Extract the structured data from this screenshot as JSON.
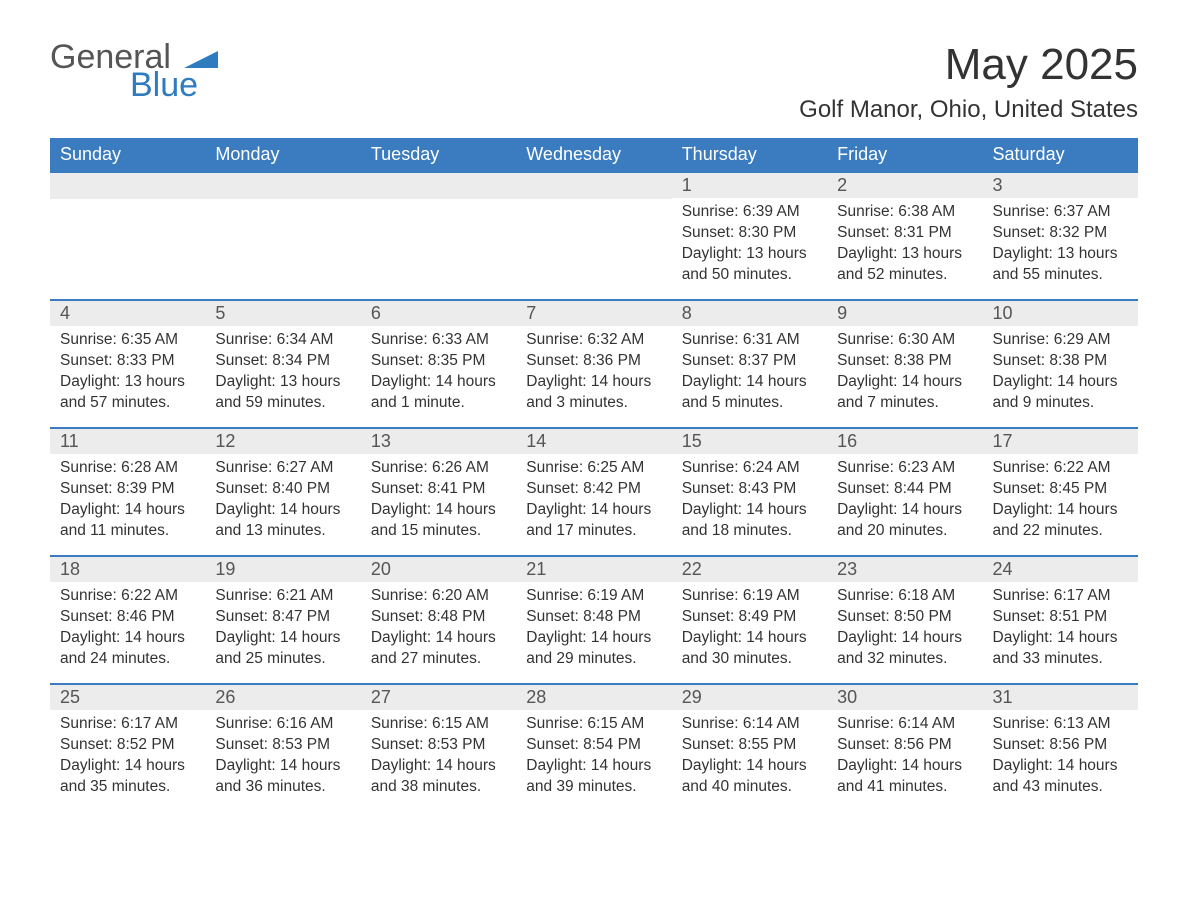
{
  "brand": {
    "word1": "General",
    "word2": "Blue",
    "shape_color": "#2f7bbf",
    "text_gray": "#555555",
    "text_blue": "#2f7bbf"
  },
  "title": "May 2025",
  "location": "Golf Manor, Ohio, United States",
  "colors": {
    "header_bg": "#3a7cbf",
    "header_text": "#ffffff",
    "daynum_bg": "#ececec",
    "daynum_text": "#555555",
    "body_text": "#333333",
    "row_border": "#3a7cbf",
    "page_bg": "#ffffff"
  },
  "fonts": {
    "title_size_pt": 33,
    "location_size_pt": 18,
    "header_size_pt": 14,
    "daynum_size_pt": 14,
    "body_size_pt": 12
  },
  "weekdays": [
    "Sunday",
    "Monday",
    "Tuesday",
    "Wednesday",
    "Thursday",
    "Friday",
    "Saturday"
  ],
  "weeks": [
    [
      {
        "day": "",
        "sunrise": "",
        "sunset": "",
        "daylight": ""
      },
      {
        "day": "",
        "sunrise": "",
        "sunset": "",
        "daylight": ""
      },
      {
        "day": "",
        "sunrise": "",
        "sunset": "",
        "daylight": ""
      },
      {
        "day": "",
        "sunrise": "",
        "sunset": "",
        "daylight": ""
      },
      {
        "day": "1",
        "sunrise": "Sunrise: 6:39 AM",
        "sunset": "Sunset: 8:30 PM",
        "daylight": "Daylight: 13 hours and 50 minutes."
      },
      {
        "day": "2",
        "sunrise": "Sunrise: 6:38 AM",
        "sunset": "Sunset: 8:31 PM",
        "daylight": "Daylight: 13 hours and 52 minutes."
      },
      {
        "day": "3",
        "sunrise": "Sunrise: 6:37 AM",
        "sunset": "Sunset: 8:32 PM",
        "daylight": "Daylight: 13 hours and 55 minutes."
      }
    ],
    [
      {
        "day": "4",
        "sunrise": "Sunrise: 6:35 AM",
        "sunset": "Sunset: 8:33 PM",
        "daylight": "Daylight: 13 hours and 57 minutes."
      },
      {
        "day": "5",
        "sunrise": "Sunrise: 6:34 AM",
        "sunset": "Sunset: 8:34 PM",
        "daylight": "Daylight: 13 hours and 59 minutes."
      },
      {
        "day": "6",
        "sunrise": "Sunrise: 6:33 AM",
        "sunset": "Sunset: 8:35 PM",
        "daylight": "Daylight: 14 hours and 1 minute."
      },
      {
        "day": "7",
        "sunrise": "Sunrise: 6:32 AM",
        "sunset": "Sunset: 8:36 PM",
        "daylight": "Daylight: 14 hours and 3 minutes."
      },
      {
        "day": "8",
        "sunrise": "Sunrise: 6:31 AM",
        "sunset": "Sunset: 8:37 PM",
        "daylight": "Daylight: 14 hours and 5 minutes."
      },
      {
        "day": "9",
        "sunrise": "Sunrise: 6:30 AM",
        "sunset": "Sunset: 8:38 PM",
        "daylight": "Daylight: 14 hours and 7 minutes."
      },
      {
        "day": "10",
        "sunrise": "Sunrise: 6:29 AM",
        "sunset": "Sunset: 8:38 PM",
        "daylight": "Daylight: 14 hours and 9 minutes."
      }
    ],
    [
      {
        "day": "11",
        "sunrise": "Sunrise: 6:28 AM",
        "sunset": "Sunset: 8:39 PM",
        "daylight": "Daylight: 14 hours and 11 minutes."
      },
      {
        "day": "12",
        "sunrise": "Sunrise: 6:27 AM",
        "sunset": "Sunset: 8:40 PM",
        "daylight": "Daylight: 14 hours and 13 minutes."
      },
      {
        "day": "13",
        "sunrise": "Sunrise: 6:26 AM",
        "sunset": "Sunset: 8:41 PM",
        "daylight": "Daylight: 14 hours and 15 minutes."
      },
      {
        "day": "14",
        "sunrise": "Sunrise: 6:25 AM",
        "sunset": "Sunset: 8:42 PM",
        "daylight": "Daylight: 14 hours and 17 minutes."
      },
      {
        "day": "15",
        "sunrise": "Sunrise: 6:24 AM",
        "sunset": "Sunset: 8:43 PM",
        "daylight": "Daylight: 14 hours and 18 minutes."
      },
      {
        "day": "16",
        "sunrise": "Sunrise: 6:23 AM",
        "sunset": "Sunset: 8:44 PM",
        "daylight": "Daylight: 14 hours and 20 minutes."
      },
      {
        "day": "17",
        "sunrise": "Sunrise: 6:22 AM",
        "sunset": "Sunset: 8:45 PM",
        "daylight": "Daylight: 14 hours and 22 minutes."
      }
    ],
    [
      {
        "day": "18",
        "sunrise": "Sunrise: 6:22 AM",
        "sunset": "Sunset: 8:46 PM",
        "daylight": "Daylight: 14 hours and 24 minutes."
      },
      {
        "day": "19",
        "sunrise": "Sunrise: 6:21 AM",
        "sunset": "Sunset: 8:47 PM",
        "daylight": "Daylight: 14 hours and 25 minutes."
      },
      {
        "day": "20",
        "sunrise": "Sunrise: 6:20 AM",
        "sunset": "Sunset: 8:48 PM",
        "daylight": "Daylight: 14 hours and 27 minutes."
      },
      {
        "day": "21",
        "sunrise": "Sunrise: 6:19 AM",
        "sunset": "Sunset: 8:48 PM",
        "daylight": "Daylight: 14 hours and 29 minutes."
      },
      {
        "day": "22",
        "sunrise": "Sunrise: 6:19 AM",
        "sunset": "Sunset: 8:49 PM",
        "daylight": "Daylight: 14 hours and 30 minutes."
      },
      {
        "day": "23",
        "sunrise": "Sunrise: 6:18 AM",
        "sunset": "Sunset: 8:50 PM",
        "daylight": "Daylight: 14 hours and 32 minutes."
      },
      {
        "day": "24",
        "sunrise": "Sunrise: 6:17 AM",
        "sunset": "Sunset: 8:51 PM",
        "daylight": "Daylight: 14 hours and 33 minutes."
      }
    ],
    [
      {
        "day": "25",
        "sunrise": "Sunrise: 6:17 AM",
        "sunset": "Sunset: 8:52 PM",
        "daylight": "Daylight: 14 hours and 35 minutes."
      },
      {
        "day": "26",
        "sunrise": "Sunrise: 6:16 AM",
        "sunset": "Sunset: 8:53 PM",
        "daylight": "Daylight: 14 hours and 36 minutes."
      },
      {
        "day": "27",
        "sunrise": "Sunrise: 6:15 AM",
        "sunset": "Sunset: 8:53 PM",
        "daylight": "Daylight: 14 hours and 38 minutes."
      },
      {
        "day": "28",
        "sunrise": "Sunrise: 6:15 AM",
        "sunset": "Sunset: 8:54 PM",
        "daylight": "Daylight: 14 hours and 39 minutes."
      },
      {
        "day": "29",
        "sunrise": "Sunrise: 6:14 AM",
        "sunset": "Sunset: 8:55 PM",
        "daylight": "Daylight: 14 hours and 40 minutes."
      },
      {
        "day": "30",
        "sunrise": "Sunrise: 6:14 AM",
        "sunset": "Sunset: 8:56 PM",
        "daylight": "Daylight: 14 hours and 41 minutes."
      },
      {
        "day": "31",
        "sunrise": "Sunrise: 6:13 AM",
        "sunset": "Sunset: 8:56 PM",
        "daylight": "Daylight: 14 hours and 43 minutes."
      }
    ]
  ]
}
